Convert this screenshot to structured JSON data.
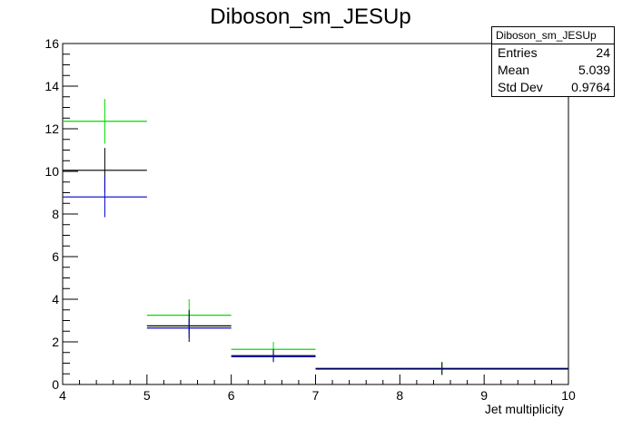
{
  "chart_data": {
    "type": "histogram",
    "title": "Diboson_sm_JESUp",
    "xlabel": "Jet multiplicity",
    "ylabel": "",
    "xlim": [
      4,
      10
    ],
    "ylim": [
      0,
      16
    ],
    "x_ticks": [
      4,
      5,
      6,
      7,
      8,
      9,
      10
    ],
    "y_ticks": [
      0,
      2,
      4,
      6,
      8,
      10,
      12,
      14,
      16
    ],
    "grid": false,
    "series": [
      {
        "color": "#00dd00",
        "bins": [
          {
            "x_low": 4,
            "x_high": 5,
            "y": 12.35,
            "err": 1.05
          },
          {
            "x_low": 5,
            "x_high": 6,
            "y": 3.25,
            "err": 0.75
          },
          {
            "x_low": 6,
            "x_high": 7,
            "y": 1.65,
            "err": 0.35
          },
          {
            "x_low": 7,
            "x_high": 10,
            "y": 0.75,
            "err": 0.3
          }
        ]
      },
      {
        "color": "#000000",
        "bins": [
          {
            "x_low": 4,
            "x_high": 5,
            "y": 10.05,
            "err": 1.05
          },
          {
            "x_low": 5,
            "x_high": 6,
            "y": 2.75,
            "err": 0.75
          },
          {
            "x_low": 6,
            "x_high": 7,
            "y": 1.35,
            "err": 0.3
          },
          {
            "x_low": 7,
            "x_high": 10,
            "y": 0.75,
            "err": 0.3
          }
        ]
      },
      {
        "color": "#0000cc",
        "bins": [
          {
            "x_low": 4,
            "x_high": 5,
            "y": 8.8,
            "err": 0.95
          },
          {
            "x_low": 5,
            "x_high": 6,
            "y": 2.65,
            "err": 0.45
          },
          {
            "x_low": 6,
            "x_high": 7,
            "y": 1.3,
            "err": 0.15
          },
          {
            "x_low": 7,
            "x_high": 10,
            "y": 0.72,
            "err": 0.05
          }
        ]
      }
    ],
    "stats_box": {
      "title": "Diboson_sm_JESUp",
      "rows": [
        {
          "label": "Entries",
          "value": "24"
        },
        {
          "label": "Mean",
          "value": "5.039"
        },
        {
          "label": "Std Dev",
          "value": "0.9764"
        }
      ]
    }
  }
}
